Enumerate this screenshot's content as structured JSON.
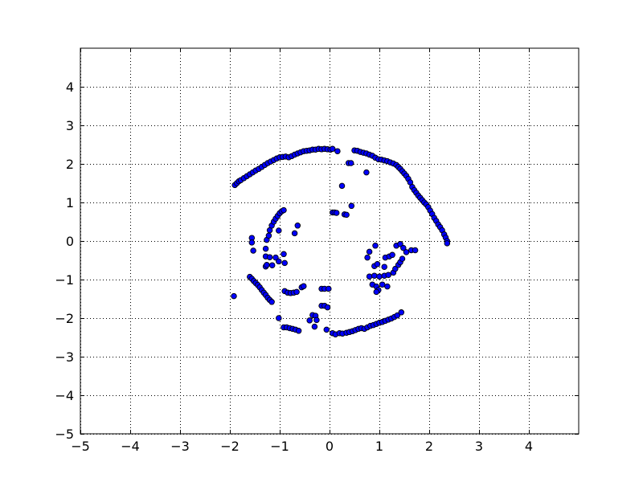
{
  "chart_data": {
    "type": "scatter",
    "title": "",
    "xlabel": "",
    "ylabel": "",
    "xlim": [
      -5,
      5
    ],
    "ylim": [
      -5,
      5
    ],
    "x_ticks": [
      -5,
      -4,
      -3,
      -2,
      -1,
      0,
      1,
      2,
      3,
      4
    ],
    "y_ticks": [
      -5,
      -4,
      -3,
      -2,
      -1,
      0,
      1,
      2,
      3,
      4
    ],
    "x_tick_labels": [
      "−5",
      "−4",
      "−3",
      "−2",
      "−1",
      "0",
      "1",
      "2",
      "3",
      "4"
    ],
    "y_tick_labels": [
      "−5",
      "−4",
      "−3",
      "−2",
      "−1",
      "0",
      "1",
      "2",
      "3",
      "4"
    ],
    "grid": true,
    "legend": "none",
    "marker_color": "#0000ff",
    "marker_edge_color": "#000000",
    "series": [
      {
        "name": "",
        "points": [
          [
            -1.9,
            1.45
          ],
          [
            -1.86,
            1.5
          ],
          [
            -1.82,
            1.55
          ],
          [
            -1.78,
            1.58
          ],
          [
            -1.72,
            1.63
          ],
          [
            -1.66,
            1.68
          ],
          [
            -1.6,
            1.73
          ],
          [
            -1.54,
            1.78
          ],
          [
            -1.48,
            1.83
          ],
          [
            -1.42,
            1.87
          ],
          [
            -1.36,
            1.92
          ],
          [
            -1.3,
            1.97
          ],
          [
            -1.24,
            2.02
          ],
          [
            -1.18,
            2.06
          ],
          [
            -1.12,
            2.1
          ],
          [
            -1.06,
            2.14
          ],
          [
            -1.0,
            2.17
          ],
          [
            -0.94,
            2.18
          ],
          [
            -0.88,
            2.19
          ],
          [
            -0.82,
            2.17
          ],
          [
            -0.76,
            2.2
          ],
          [
            -0.7,
            2.24
          ],
          [
            -0.64,
            2.27
          ],
          [
            -0.58,
            2.3
          ],
          [
            -0.52,
            2.33
          ],
          [
            -0.46,
            2.34
          ],
          [
            -0.4,
            2.35
          ],
          [
            -0.34,
            2.37
          ],
          [
            -0.28,
            2.37
          ],
          [
            -0.22,
            2.39
          ],
          [
            -0.16,
            2.38
          ],
          [
            -0.1,
            2.39
          ],
          [
            -0.04,
            2.38
          ],
          [
            0.02,
            2.37
          ],
          [
            0.06,
            2.39
          ],
          [
            0.16,
            2.33
          ],
          [
            0.5,
            2.35
          ],
          [
            0.56,
            2.34
          ],
          [
            0.62,
            2.31
          ],
          [
            0.68,
            2.29
          ],
          [
            0.74,
            2.27
          ],
          [
            0.8,
            2.24
          ],
          [
            0.86,
            2.21
          ],
          [
            0.92,
            2.16
          ],
          [
            0.98,
            2.12
          ],
          [
            1.04,
            2.11
          ],
          [
            1.1,
            2.09
          ],
          [
            1.16,
            2.07
          ],
          [
            1.22,
            2.04
          ],
          [
            1.28,
            2.01
          ],
          [
            1.34,
            1.97
          ],
          [
            1.38,
            1.92
          ],
          [
            1.42,
            1.87
          ],
          [
            1.46,
            1.81
          ],
          [
            1.5,
            1.75
          ],
          [
            1.54,
            1.69
          ],
          [
            1.58,
            1.61
          ],
          [
            1.62,
            1.52
          ],
          [
            1.66,
            1.4
          ],
          [
            1.7,
            1.32
          ],
          [
            1.74,
            1.25
          ],
          [
            1.78,
            1.18
          ],
          [
            1.82,
            1.12
          ],
          [
            1.86,
            1.06
          ],
          [
            1.9,
            1.0
          ],
          [
            1.94,
            0.95
          ],
          [
            1.98,
            0.88
          ],
          [
            2.02,
            0.79
          ],
          [
            2.06,
            0.7
          ],
          [
            2.1,
            0.6
          ],
          [
            2.14,
            0.52
          ],
          [
            2.18,
            0.43
          ],
          [
            2.22,
            0.36
          ],
          [
            2.26,
            0.28
          ],
          [
            2.3,
            0.17
          ],
          [
            2.33,
            0.09
          ],
          [
            2.36,
            0.0
          ],
          [
            2.36,
            -0.06
          ],
          [
            0.38,
            2.02
          ],
          [
            0.43,
            2.02
          ],
          [
            0.74,
            1.78
          ],
          [
            0.25,
            1.43
          ],
          [
            0.44,
            0.91
          ],
          [
            0.06,
            0.74
          ],
          [
            0.1,
            0.74
          ],
          [
            0.14,
            0.73
          ],
          [
            0.3,
            0.69
          ],
          [
            0.34,
            0.68
          ],
          [
            -1.26,
            0.03
          ],
          [
            -1.22,
            0.14
          ],
          [
            -1.2,
            0.28
          ],
          [
            -1.16,
            0.4
          ],
          [
            -1.12,
            0.5
          ],
          [
            -1.08,
            0.58
          ],
          [
            -1.04,
            0.65
          ],
          [
            -1.0,
            0.72
          ],
          [
            -0.96,
            0.77
          ],
          [
            -0.92,
            0.8
          ],
          [
            -1.02,
            0.27
          ],
          [
            -0.64,
            0.4
          ],
          [
            -0.7,
            0.2
          ],
          [
            -1.56,
            0.08
          ],
          [
            -1.56,
            -0.04
          ],
          [
            -1.53,
            -0.25
          ],
          [
            -1.28,
            -0.2
          ],
          [
            -1.28,
            -0.4
          ],
          [
            -1.28,
            -0.66
          ],
          [
            -1.26,
            -0.62
          ],
          [
            -1.2,
            -0.42
          ],
          [
            -1.15,
            -0.63
          ],
          [
            -1.08,
            -0.43
          ],
          [
            -1.02,
            -0.53
          ],
          [
            -0.92,
            -0.34
          ],
          [
            -0.9,
            -0.57
          ],
          [
            -1.6,
            -0.93
          ],
          [
            -1.56,
            -0.98
          ],
          [
            -1.52,
            -1.04
          ],
          [
            -1.48,
            -1.09
          ],
          [
            -1.44,
            -1.14
          ],
          [
            -1.4,
            -1.2
          ],
          [
            -1.36,
            -1.27
          ],
          [
            -1.32,
            -1.34
          ],
          [
            -1.28,
            -1.4
          ],
          [
            -1.24,
            -1.47
          ],
          [
            -1.2,
            -1.53
          ],
          [
            -1.16,
            -1.58
          ],
          [
            -1.92,
            -1.43
          ],
          [
            -1.02,
            -2.0
          ],
          [
            -0.9,
            -1.3
          ],
          [
            -0.84,
            -1.34
          ],
          [
            -0.78,
            -1.35
          ],
          [
            -0.72,
            -1.34
          ],
          [
            -0.66,
            -1.32
          ],
          [
            -0.56,
            -1.2
          ],
          [
            -0.52,
            -1.17
          ],
          [
            -0.16,
            -1.24
          ],
          [
            -0.1,
            -1.24
          ],
          [
            -0.02,
            -1.24
          ],
          [
            -0.16,
            -1.68
          ],
          [
            -0.1,
            -1.68
          ],
          [
            -0.04,
            -1.72
          ],
          [
            -0.4,
            -2.06
          ],
          [
            -0.34,
            -1.92
          ],
          [
            -0.3,
            -2.22
          ],
          [
            -0.28,
            -1.94
          ],
          [
            -0.26,
            -2.05
          ],
          [
            -0.92,
            -2.24
          ],
          [
            -0.86,
            -2.24
          ],
          [
            -0.8,
            -2.26
          ],
          [
            -0.74,
            -2.28
          ],
          [
            -0.68,
            -2.3
          ],
          [
            -0.62,
            -2.33
          ],
          [
            -0.06,
            -2.3
          ],
          [
            0.06,
            -2.39
          ],
          [
            0.12,
            -2.42
          ],
          [
            0.2,
            -2.39
          ],
          [
            0.26,
            -2.4
          ],
          [
            0.34,
            -2.38
          ],
          [
            0.4,
            -2.36
          ],
          [
            0.46,
            -2.34
          ],
          [
            0.52,
            -2.31
          ],
          [
            0.58,
            -2.28
          ],
          [
            0.64,
            -2.26
          ],
          [
            0.7,
            -2.28
          ],
          [
            0.76,
            -2.24
          ],
          [
            0.82,
            -2.2
          ],
          [
            0.88,
            -2.18
          ],
          [
            0.94,
            -2.15
          ],
          [
            1.0,
            -2.12
          ],
          [
            1.06,
            -2.1
          ],
          [
            1.12,
            -2.07
          ],
          [
            1.18,
            -2.04
          ],
          [
            1.24,
            -2.01
          ],
          [
            1.3,
            -1.97
          ],
          [
            1.36,
            -1.93
          ],
          [
            1.44,
            -1.85
          ],
          [
            0.8,
            -0.28
          ],
          [
            0.76,
            -0.43
          ],
          [
            0.9,
            -0.65
          ],
          [
            0.96,
            -0.6
          ],
          [
            0.8,
            -0.92
          ],
          [
            0.9,
            -0.9
          ],
          [
            1.0,
            -0.92
          ],
          [
            1.1,
            -0.9
          ],
          [
            1.18,
            -0.88
          ],
          [
            0.86,
            -1.13
          ],
          [
            0.94,
            -1.18
          ],
          [
            0.98,
            -1.27
          ],
          [
            1.06,
            -1.13
          ],
          [
            1.16,
            -1.18
          ],
          [
            0.94,
            -1.32
          ],
          [
            1.1,
            -0.67
          ],
          [
            0.92,
            -0.12
          ],
          [
            1.12,
            -0.43
          ],
          [
            1.2,
            -0.4
          ],
          [
            1.26,
            -0.36
          ],
          [
            1.28,
            -0.82
          ],
          [
            1.32,
            -0.72
          ],
          [
            1.38,
            -0.62
          ],
          [
            1.42,
            -0.55
          ],
          [
            1.46,
            -0.46
          ],
          [
            1.34,
            -0.12
          ],
          [
            1.42,
            -0.08
          ],
          [
            1.48,
            -0.18
          ],
          [
            1.54,
            -0.29
          ],
          [
            1.64,
            -0.24
          ],
          [
            1.72,
            -0.24
          ]
        ]
      }
    ]
  }
}
